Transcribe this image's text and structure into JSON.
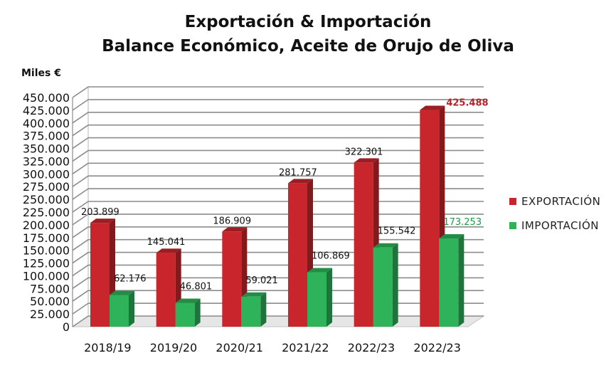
{
  "chart_data": {
    "type": "bar",
    "title": "Exportación & Importación",
    "subtitle": "Balance Económico, Aceite de Orujo de Oliva",
    "ylabel": "Miles €",
    "xlabel": "",
    "categories": [
      "2018/19",
      "2019/20",
      "2020/21",
      "2021/22",
      "2022/23",
      "2022/23"
    ],
    "ylim": [
      0,
      450000
    ],
    "yticks": [
      "0",
      "25.000",
      "50.000",
      "75.000",
      "100.000",
      "125.000",
      "150.000",
      "175.000",
      "200.000",
      "225.000",
      "250.000",
      "275.000",
      "300.000",
      "325.000",
      "350.000",
      "375.000",
      "400.000",
      "425.000",
      "450.000"
    ],
    "grid": true,
    "legend_position": "right",
    "series": [
      {
        "name": "EXPORTACIÓN",
        "color": "#c8262c",
        "values": [
          203899,
          145041,
          186909,
          281757,
          322301,
          425488
        ],
        "labels": [
          "203.899",
          "145.041",
          "186.909",
          "281.757",
          "322.301",
          "425.488"
        ]
      },
      {
        "name": "IMPORTACIÓN",
        "color": "#2fb35a",
        "values": [
          62176,
          46801,
          59021,
          106869,
          155542,
          173253
        ],
        "labels": [
          "62.176",
          "46.801",
          "59.021",
          "106.869",
          "155.542",
          "173.253"
        ]
      }
    ],
    "highlight_label_colors": {
      "EXPORTACIÓN_last": "#b3232a",
      "IMPORTACIÓN_last": "#1f9a45"
    }
  }
}
